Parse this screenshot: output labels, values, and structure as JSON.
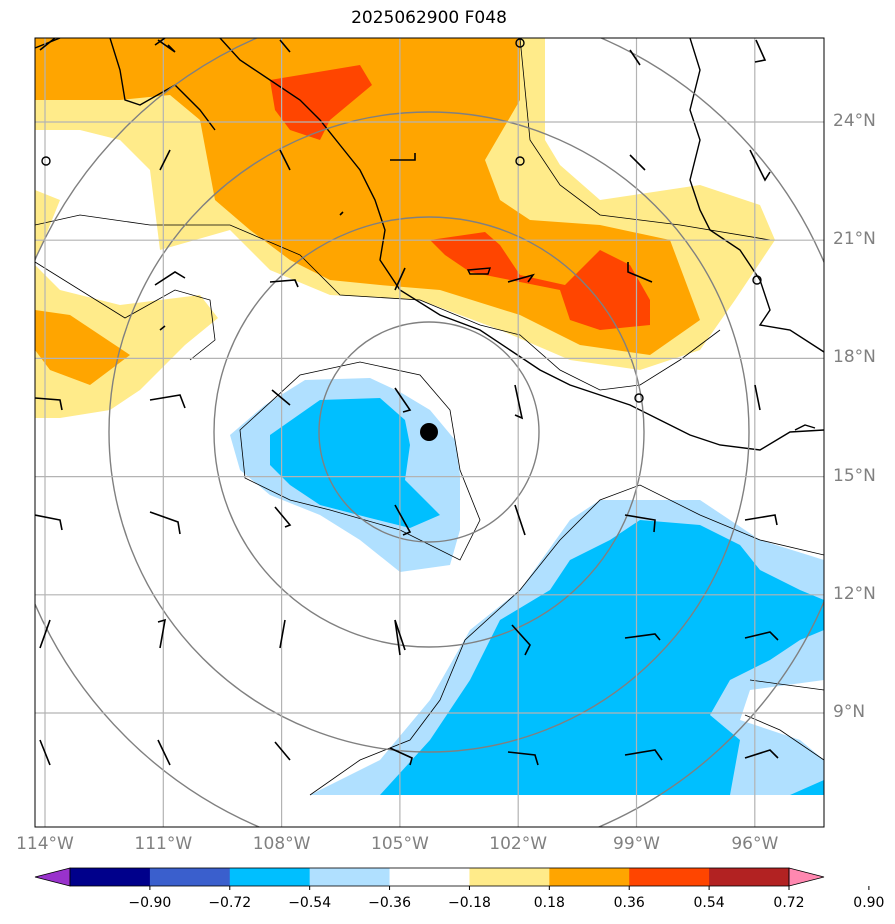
{
  "title": "2025062900 F048",
  "lon_ticks": [
    {
      "value": -114,
      "label": "114°W"
    },
    {
      "value": -111,
      "label": "111°W"
    },
    {
      "value": -108,
      "label": "108°W"
    },
    {
      "value": -105,
      "label": "105°W"
    },
    {
      "value": -102,
      "label": "102°W"
    },
    {
      "value": -99,
      "label": "99°W"
    },
    {
      "value": -96,
      "label": "96°W"
    }
  ],
  "lat_ticks": [
    {
      "value": 24,
      "label": "24°N"
    },
    {
      "value": 21,
      "label": "21°N"
    },
    {
      "value": 18,
      "label": "18°N"
    },
    {
      "value": 15,
      "label": "15°N"
    },
    {
      "value": 12,
      "label": "12°N"
    },
    {
      "value": 9,
      "label": "9°N"
    }
  ],
  "colorbar": {
    "levels": [
      "−0.90",
      "−0.72",
      "−0.54",
      "−0.36",
      "−0.18",
      "0.18",
      "0.36",
      "0.54",
      "0.72",
      "0.90"
    ],
    "colors": [
      "#9932cc",
      "#00008b",
      "#3a5fcd",
      "#00bfff",
      "#b0e0ff",
      "#ffffff",
      "#ffeb8a",
      "#ffa500",
      "#ff4500",
      "#b22222",
      "#ff88b0"
    ],
    "extend": "both"
  },
  "storm_center_marker": "black-dot"
}
